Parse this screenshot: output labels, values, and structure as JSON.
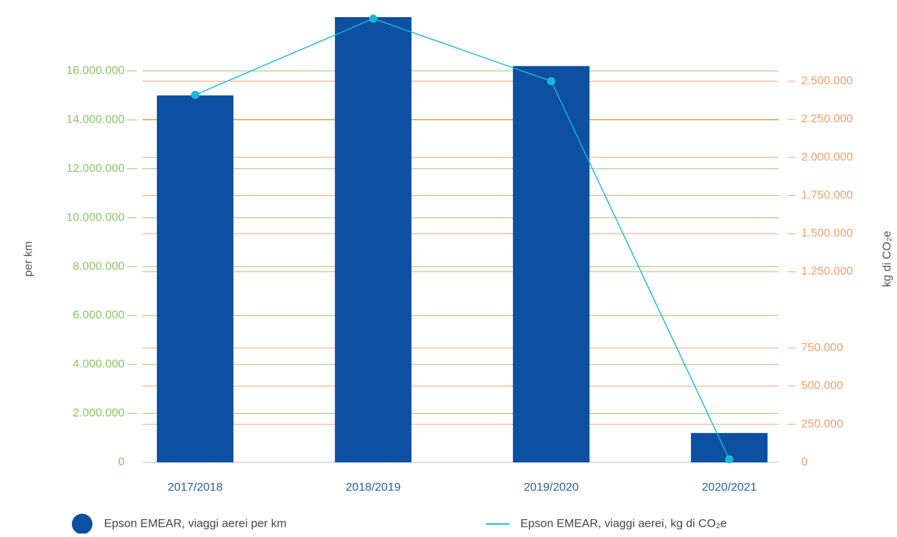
{
  "chart_data": {
    "type": "bar-line",
    "categories": [
      "2017/2018",
      "2018/2019",
      "2019/2020",
      "2020/2021"
    ],
    "series": [
      {
        "name": "Epson EMEAR, viaggi aerei per km",
        "color": "#0d4fa0",
        "type": "bar",
        "values": [
          15000000,
          18200000,
          16200000,
          1200000
        ]
      },
      {
        "name": "Epson EMEAR, viaggi aerei, kg di CO₂e",
        "color": "#1ab8d8",
        "type": "line",
        "axis": "y2",
        "values": [
          2410000,
          2910000,
          2500000,
          20000
        ]
      }
    ],
    "ylabel": "per km",
    "y2label": "kg di CO₂e",
    "ylim": [
      0,
      18200000
    ],
    "yticks": [
      0,
      {
        "value": 2000000,
        "label": "2.000.000"
      },
      {
        "value": 4000000,
        "label": "4.000.000"
      },
      {
        "value": 6000000,
        "label": "6.000.000"
      },
      {
        "value": 8000000,
        "label": "8.000.000"
      },
      {
        "value": 10000000,
        "label": "10.000.000"
      },
      {
        "value": 12000000,
        "label": "12.000.000"
      },
      {
        "value": 14000000,
        "label": "14.000.000"
      },
      {
        "value": 16000000,
        "label": "16.000.000"
      }
    ],
    "y2lim": [
      0,
      2920000
    ],
    "y2ticks": [
      0,
      {
        "value": 250000,
        "label": "250.000"
      },
      {
        "value": 500000,
        "label": "500.000"
      },
      {
        "value": 750000,
        "label": "750.000"
      },
      {
        "value": 1250000,
        "label": "1.250.000"
      },
      {
        "value": 1500000,
        "label": "1.500.000"
      },
      {
        "value": 1750000,
        "label": "1.750.000"
      },
      {
        "value": 2000000,
        "label": "2.000.000"
      },
      {
        "value": 2250000,
        "label": "2.250.000"
      },
      {
        "value": 2500000,
        "label": "2.500.000"
      }
    ],
    "grid": true,
    "ytick_color": "#8dc467",
    "y2tick_color": "#f0a070"
  }
}
